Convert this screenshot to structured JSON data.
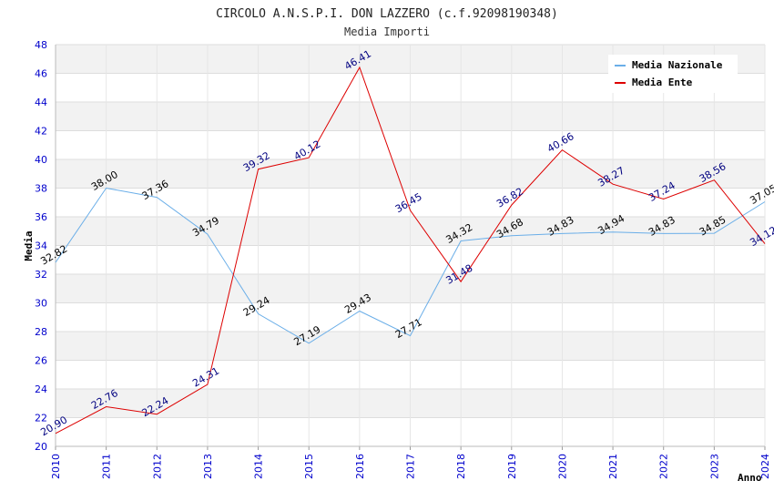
{
  "chart_data": {
    "type": "line",
    "title": "CIRCOLO A.N.S.P.I. DON LAZZERO (c.f.92098190348)",
    "subtitle": "Media Importi",
    "xlabel": "Anno",
    "ylabel": "Media",
    "ylim": [
      20,
      48
    ],
    "yticks": [
      "20",
      "22",
      "24",
      "26",
      "28",
      "30",
      "32",
      "34",
      "36",
      "38",
      "40",
      "42",
      "44",
      "46",
      "48"
    ],
    "x": [
      "2010",
      "2011",
      "2012",
      "2013",
      "2014",
      "2015",
      "2016",
      "2017",
      "2018",
      "2019",
      "2020",
      "2021",
      "2022",
      "2023",
      "2024"
    ],
    "grid": true,
    "legend_position": "top-right",
    "series": [
      {
        "name": "Media Nazionale",
        "color": "#6aaee8",
        "label_color": "#000000",
        "values": [
          32.82,
          38.0,
          37.36,
          34.79,
          29.24,
          27.19,
          29.43,
          27.71,
          34.32,
          34.68,
          34.83,
          34.94,
          34.83,
          34.85,
          37.05
        ],
        "labels": [
          "32.82",
          "38.00",
          "37.36",
          "34.79",
          "29.24",
          "27.19",
          "29.43",
          "27.71",
          "34.32",
          "34.68",
          "34.83",
          "34.94",
          "34.83",
          "34.85",
          "37.05"
        ]
      },
      {
        "name": "Media Ente",
        "color": "#dd0000",
        "label_color": "#000080",
        "values": [
          20.9,
          22.76,
          22.24,
          24.31,
          39.32,
          40.12,
          46.41,
          36.45,
          31.48,
          36.82,
          40.66,
          38.27,
          37.24,
          38.56,
          34.12
        ],
        "labels": [
          "20.90",
          "22.76",
          "22.24",
          "24.31",
          "39.32",
          "40.12",
          "46.41",
          "36.45",
          "31.48",
          "36.82",
          "40.66",
          "38.27",
          "37.24",
          "38.56",
          "34.12"
        ]
      }
    ]
  }
}
